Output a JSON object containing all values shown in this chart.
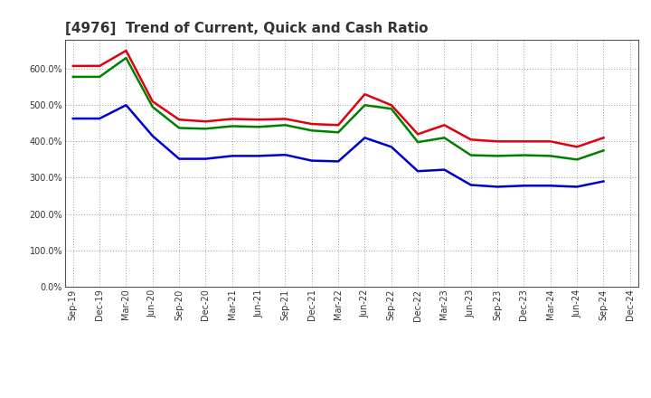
{
  "title": "[4976]  Trend of Current, Quick and Cash Ratio",
  "labels": [
    "Sep-19",
    "Dec-19",
    "Mar-20",
    "Jun-20",
    "Sep-20",
    "Dec-20",
    "Mar-21",
    "Jun-21",
    "Sep-21",
    "Dec-21",
    "Mar-22",
    "Jun-22",
    "Sep-22",
    "Dec-22",
    "Mar-23",
    "Jun-23",
    "Sep-23",
    "Dec-23",
    "Mar-24",
    "Jun-24",
    "Sep-24",
    "Dec-24"
  ],
  "current_ratio": [
    608,
    608,
    650,
    510,
    460,
    455,
    462,
    460,
    462,
    448,
    445,
    530,
    500,
    420,
    445,
    405,
    400,
    400,
    400,
    385,
    410,
    null
  ],
  "quick_ratio": [
    578,
    578,
    630,
    495,
    437,
    435,
    442,
    440,
    445,
    430,
    425,
    500,
    490,
    398,
    410,
    362,
    360,
    362,
    360,
    350,
    375,
    null
  ],
  "cash_ratio": [
    463,
    463,
    500,
    415,
    352,
    352,
    360,
    360,
    363,
    347,
    345,
    410,
    385,
    318,
    322,
    280,
    275,
    278,
    278,
    275,
    290,
    null
  ],
  "current_color": "#e00010",
  "quick_color": "#008000",
  "cash_color": "#0000cc",
  "ylim": [
    0,
    680
  ],
  "yticks": [
    0,
    100,
    200,
    300,
    400,
    500,
    600
  ],
  "background_color": "#ffffff",
  "grid_color": "#999999",
  "title_fontsize": 11,
  "tick_fontsize": 7,
  "legend_fontsize": 8.5
}
